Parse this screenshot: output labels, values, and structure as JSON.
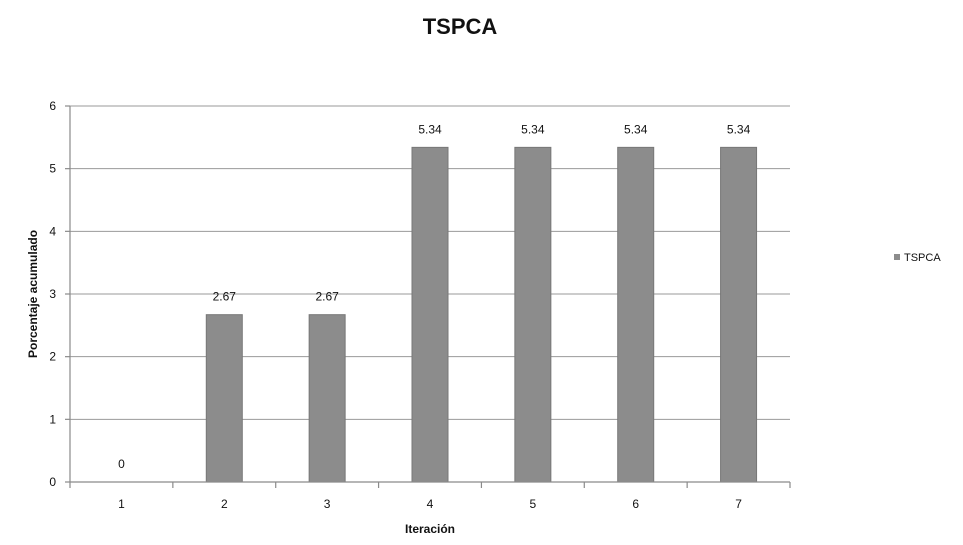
{
  "chart_data": {
    "type": "bar",
    "title": "TSPCA",
    "xlabel": "Iteración",
    "ylabel": "Porcentaje acumulado",
    "categories": [
      "1",
      "2",
      "3",
      "4",
      "5",
      "6",
      "7"
    ],
    "series": [
      {
        "name": "TSPCA",
        "values": [
          0,
          2.67,
          2.67,
          5.34,
          5.34,
          5.34,
          5.34
        ]
      }
    ],
    "data_labels": [
      "0",
      "2.67",
      "2.67",
      "5.34",
      "5.34",
      "5.34",
      "5.34"
    ],
    "ylim": [
      0,
      6
    ],
    "yticks": [
      "0",
      "1",
      "2",
      "3",
      "4",
      "5",
      "6"
    ],
    "grid": true,
    "legend_position": "right",
    "bar_color": "#8c8c8c"
  }
}
